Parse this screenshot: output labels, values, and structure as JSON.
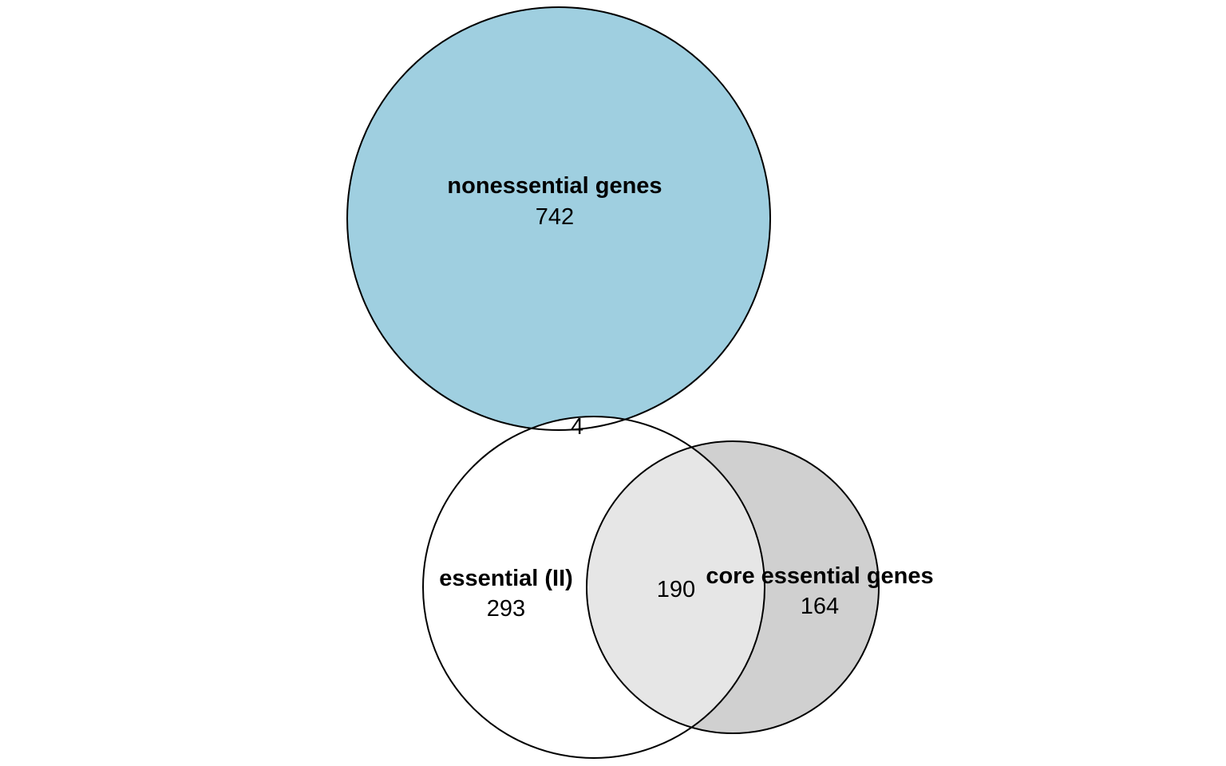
{
  "diagram": {
    "type": "venn",
    "sets": {
      "nonessential": {
        "label": "nonessential genes",
        "fill": "#9fcfe0"
      },
      "essential": {
        "label": "essential (II)",
        "fill": "#ffffff"
      },
      "core": {
        "label": "core essential genes",
        "fill": "#d0d0d0"
      }
    },
    "regions": {
      "nonessential_only": "742",
      "nonessential_essential": "4",
      "essential_only": "293",
      "essential_core": "190",
      "core_only": "164"
    },
    "colors": {
      "overlap_essential_core": "#e6e6e6",
      "stroke": "#000000"
    }
  }
}
